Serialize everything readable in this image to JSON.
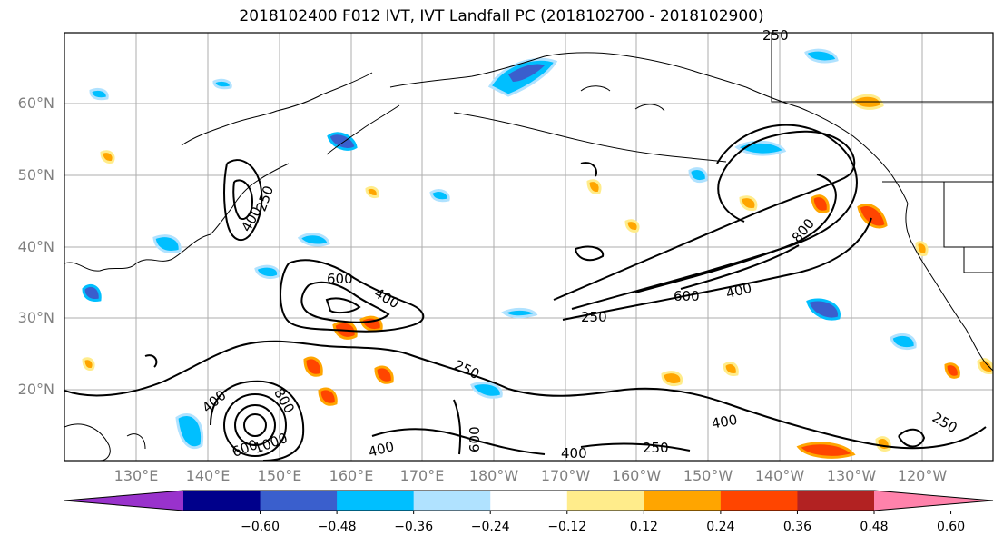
{
  "title": "2018102400 F012 IVT, IVT Landfall PC (2018102700 - 2018102900)",
  "lat_labels": [
    "60°N",
    "50°N",
    "40°N",
    "30°N",
    "20°N"
  ],
  "lon_labels": [
    "130°E",
    "140°E",
    "150°E",
    "160°E",
    "170°E",
    "180°W",
    "170°W",
    "160°W",
    "150°W",
    "140°W",
    "130°W",
    "120°W"
  ],
  "contour_labels": {
    "japan_250": "250",
    "japan_400": "400",
    "ctr_600": "600",
    "ctr_400": "400",
    "ctr_250": "250",
    "ne_600": "600",
    "ne_400": "400",
    "ne_250": "250",
    "ne_800": "800",
    "mid_250": "250",
    "ty_400": "400",
    "ty_800": "800",
    "ty_1000": "1000",
    "ty_600": "600",
    "s_400a": "400",
    "s_600": "600",
    "s_400b": "400",
    "s_250": "250",
    "se_400": "400",
    "top_250": "250",
    "e_250": "250"
  },
  "colorbar": {
    "colors": [
      "#9932cc",
      "#00008b",
      "#3a5fcd",
      "#00bfff",
      "#b0e2ff",
      "#ffffff",
      "#ffec8b",
      "#ffa500",
      "#ff4500",
      "#b22222",
      "#ff82ab"
    ],
    "tick_labels": [
      "−0.60",
      "−0.48",
      "−0.36",
      "−0.24",
      "−0.12",
      "0.12",
      "0.24",
      "0.36",
      "0.48",
      "0.60"
    ]
  }
}
